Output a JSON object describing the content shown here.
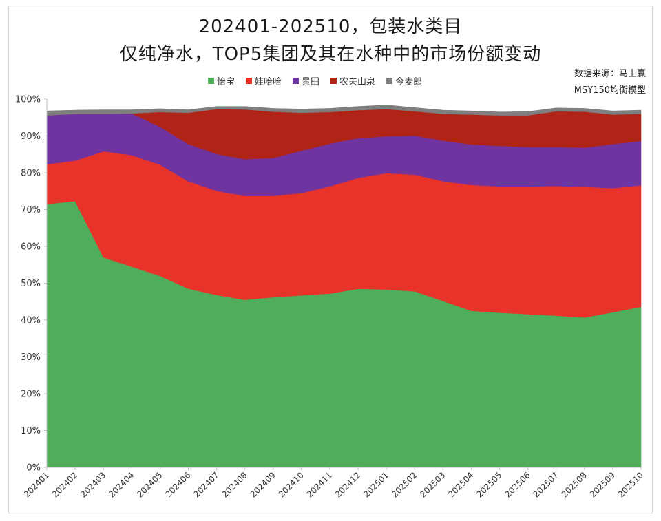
{
  "title_line1": "202401-202510，包装水类目",
  "title_line2": "仅纯净水，TOP5集团及其在水种中的市场份额变动",
  "source_line1": "数据来源：马上赢",
  "source_line2": "MSY150均衡模型",
  "chart_data": {
    "type": "area",
    "stacked": true,
    "title": "202401-202510，包装水类目 仅纯净水，TOP5集团及其在水种中的市场份额变动",
    "xlabel": "",
    "ylabel": "",
    "ylim": [
      0,
      100
    ],
    "y_ticks": [
      "0%",
      "10%",
      "20%",
      "30%",
      "40%",
      "50%",
      "60%",
      "70%",
      "80%",
      "90%",
      "100%"
    ],
    "categories": [
      "202401",
      "202402",
      "202403",
      "202404",
      "202405",
      "202406",
      "202407",
      "202408",
      "202409",
      "202410",
      "202411",
      "202412",
      "202501",
      "202502",
      "202503",
      "202504",
      "202505",
      "202506",
      "202507",
      "202508",
      "202509",
      "202510"
    ],
    "legend_position": "top",
    "series": [
      {
        "name": "怡宝",
        "color": "#4fad5b",
        "values": [
          71.5,
          72.3,
          57.0,
          54.5,
          52.0,
          48.5,
          46.8,
          45.5,
          46.2,
          46.7,
          47.2,
          48.5,
          48.3,
          47.8,
          45.2,
          42.5,
          42.0,
          41.6,
          41.2,
          40.7,
          42.1,
          43.6
        ]
      },
      {
        "name": "娃哈哈",
        "color": "#e8332a",
        "values": [
          10.8,
          11.0,
          28.8,
          30.3,
          30.2,
          29.2,
          28.3,
          28.2,
          27.5,
          27.8,
          29.1,
          30.1,
          31.6,
          31.7,
          32.5,
          34.2,
          34.3,
          34.7,
          35.2,
          35.5,
          33.7,
          33.0
        ]
      },
      {
        "name": "景田",
        "color": "#7034a0",
        "values": [
          13.3,
          12.7,
          10.2,
          11.3,
          10.3,
          10.1,
          10.0,
          10.0,
          10.3,
          11.5,
          11.6,
          10.8,
          10.0,
          10.6,
          11.0,
          11.0,
          11.0,
          10.7,
          10.6,
          10.6,
          12.0,
          12.0
        ]
      },
      {
        "name": "农夫山泉",
        "color": "#b02418",
        "values": [
          0.0,
          0.0,
          0.0,
          0.0,
          4.0,
          8.5,
          12.2,
          13.5,
          12.6,
          10.3,
          8.6,
          7.6,
          7.4,
          6.6,
          7.3,
          8.1,
          8.3,
          8.6,
          9.7,
          9.8,
          8.0,
          7.4
        ]
      },
      {
        "name": "今麦郎",
        "color": "#7f7f7f",
        "values": [
          1.2,
          1.0,
          1.1,
          1.0,
          0.9,
          0.8,
          0.7,
          0.8,
          0.9,
          1.0,
          1.0,
          1.0,
          1.1,
          1.0,
          1.0,
          1.0,
          0.9,
          1.0,
          0.9,
          0.9,
          1.0,
          1.0
        ]
      }
    ]
  }
}
